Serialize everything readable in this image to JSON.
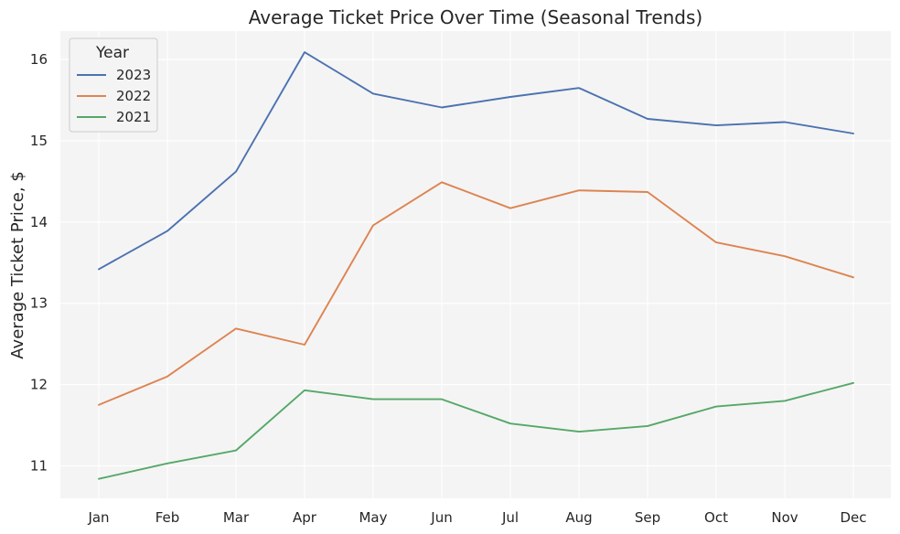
{
  "chart_data": {
    "type": "line",
    "title": "Average Ticket Price Over Time (Seasonal Trends)",
    "xlabel": "",
    "ylabel": "Average Ticket Price, $",
    "categories": [
      "Jan",
      "Feb",
      "Mar",
      "Apr",
      "May",
      "Jun",
      "Jul",
      "Aug",
      "Sep",
      "Oct",
      "Nov",
      "Dec"
    ],
    "ylim": [
      10.6,
      16.35
    ],
    "yticks": [
      11,
      12,
      13,
      14,
      15,
      16
    ],
    "grid": true,
    "legend": {
      "title": "Year",
      "position": "top-left"
    },
    "series": [
      {
        "name": "2023",
        "color": "#4c72b0",
        "values": [
          13.42,
          13.89,
          14.62,
          16.09,
          15.58,
          15.41,
          15.54,
          15.65,
          15.27,
          15.19,
          15.23,
          15.09
        ]
      },
      {
        "name": "2022",
        "color": "#dd8452",
        "values": [
          11.75,
          12.1,
          12.69,
          12.49,
          13.96,
          14.49,
          14.17,
          14.39,
          14.37,
          13.75,
          13.58,
          13.32
        ]
      },
      {
        "name": "2021",
        "color": "#55a868",
        "values": [
          10.84,
          11.03,
          11.19,
          11.93,
          11.82,
          11.82,
          11.52,
          11.42,
          11.49,
          11.73,
          11.8,
          12.02
        ]
      }
    ]
  }
}
